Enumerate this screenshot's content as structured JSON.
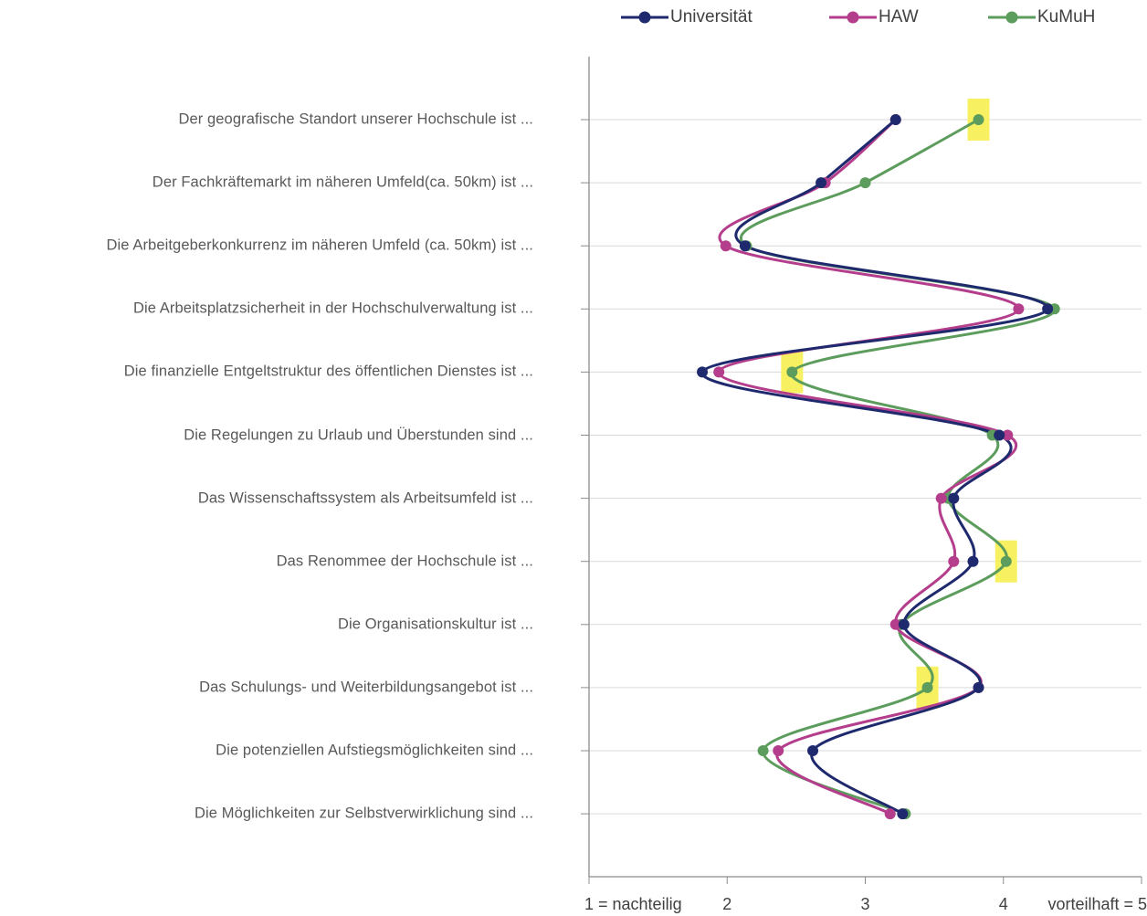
{
  "chart_data": {
    "type": "line",
    "orientation": "horizontal-values",
    "categories": [
      "Der geografische Standort unserer Hochschule ist ...",
      "Der Fachkräftemarkt im näheren Umfeld(ca. 50km) ist ...",
      "Die Arbeitgeberkonkurrenz im näheren Umfeld (ca. 50km) ist ...",
      "Die Arbeitsplatzsicherheit in der Hochschulverwaltung ist ...",
      "Die finanzielle Entgeltstruktur des öffentlichen Dienstes ist ...",
      "Die Regelungen zu Urlaub und Überstunden sind ...",
      "Das Wissenschaftssystem als Arbeitsumfeld ist ...",
      "Das Renommee der Hochschule ist ...",
      "Die Organisationskultur ist ...",
      "Das Schulungs- und Weiterbildungsangebot ist ...",
      "Die potenziellen Aufstiegsmöglichkeiten sind ...",
      "Die Möglichkeiten zur Selbstverwirklichung sind ..."
    ],
    "series": [
      {
        "name": "Universität",
        "color": "#1f2a6e",
        "values": [
          3.22,
          2.68,
          2.13,
          4.32,
          1.82,
          3.97,
          3.64,
          3.78,
          3.28,
          3.82,
          2.62,
          3.27
        ]
      },
      {
        "name": "HAW",
        "color": "#b43d8c",
        "values": [
          3.22,
          2.71,
          1.99,
          4.11,
          1.94,
          4.03,
          3.55,
          3.64,
          3.22,
          3.82,
          2.37,
          3.18
        ]
      },
      {
        "name": "KuMuH",
        "color": "#5c9c5c",
        "values": [
          3.82,
          3.0,
          2.14,
          4.37,
          2.47,
          3.92,
          3.6,
          4.02,
          3.26,
          3.45,
          2.26,
          3.29
        ]
      }
    ],
    "highlighted": [
      {
        "series": "KuMuH",
        "category_index": 0
      },
      {
        "series": "KuMuH",
        "category_index": 4
      },
      {
        "series": "KuMuH",
        "category_index": 7
      },
      {
        "series": "KuMuH",
        "category_index": 9
      }
    ],
    "highlight_color": "#f7f060",
    "xlim": [
      1,
      5
    ],
    "x_tick_labels": [
      "1 = nachteilig",
      "2",
      "3",
      "4",
      "vorteilhaft = 5"
    ],
    "gridlines": true,
    "legend_position": "top"
  }
}
